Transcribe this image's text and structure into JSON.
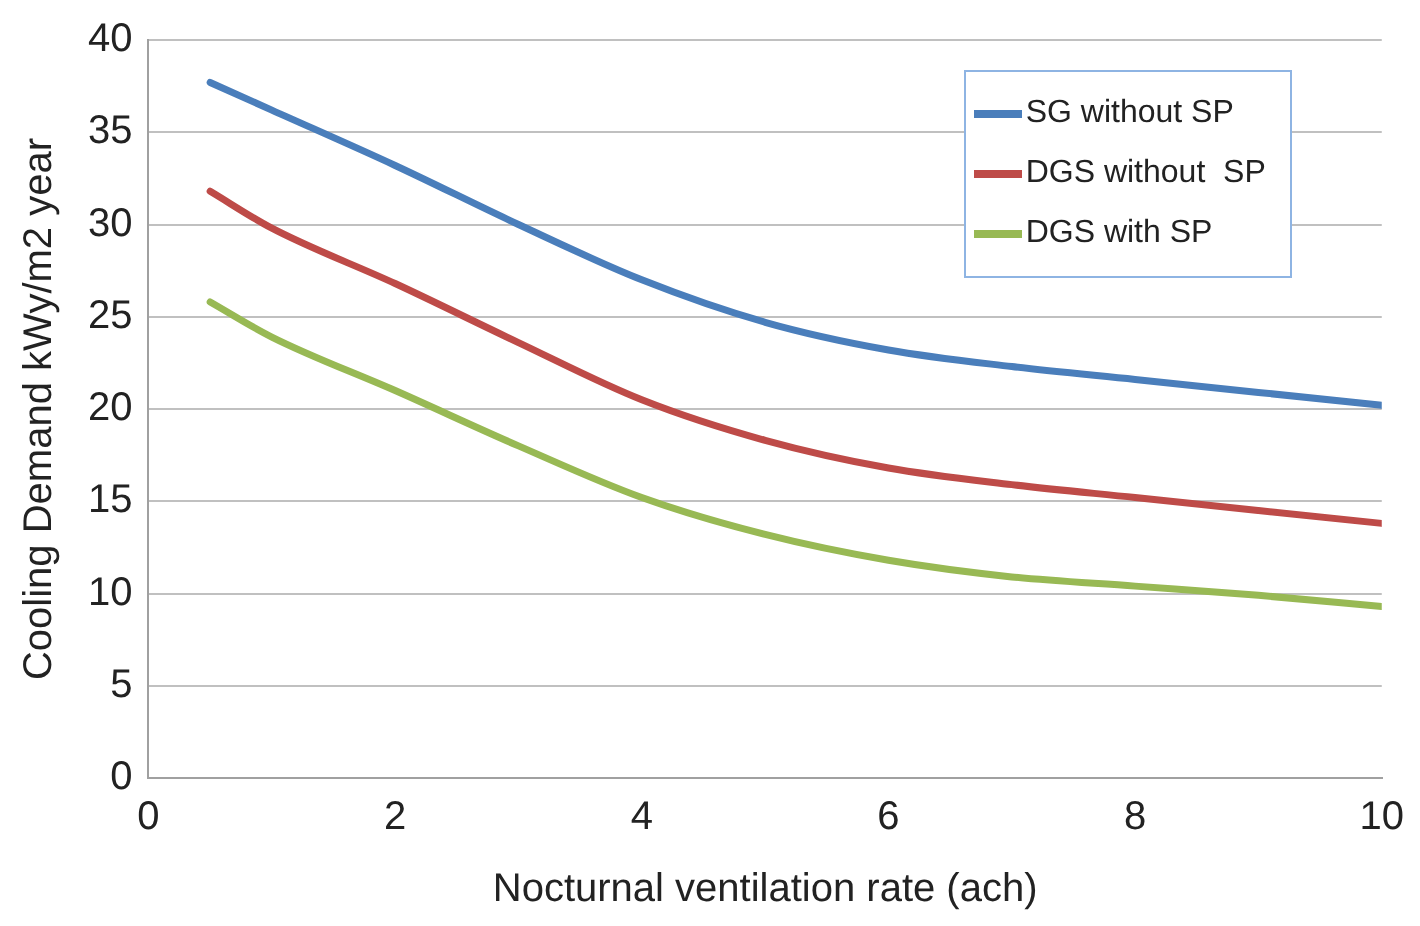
{
  "chart_data": {
    "type": "line",
    "xlabel": "Nocturnal ventilation rate (ach)",
    "ylabel": "Cooling Demand kWy/m2 year",
    "x": [
      0.5,
      1,
      2,
      3,
      4,
      5,
      6,
      7,
      8,
      9,
      10
    ],
    "series": [
      {
        "name": "SG without SP",
        "color": "#4a7ebb",
        "values": [
          37.7,
          36.2,
          33.2,
          30.0,
          27.0,
          24.7,
          23.2,
          22.3,
          21.6,
          20.9,
          20.2
        ]
      },
      {
        "name": "DGS without  SP",
        "color": "#be4b48",
        "values": [
          31.8,
          29.8,
          26.8,
          23.6,
          20.5,
          18.3,
          16.8,
          15.9,
          15.2,
          14.5,
          13.8
        ]
      },
      {
        "name": "DGS with SP",
        "color": "#98b954",
        "values": [
          25.8,
          23.9,
          21.0,
          18.0,
          15.2,
          13.2,
          11.8,
          10.9,
          10.4,
          9.9,
          9.3
        ]
      }
    ],
    "xlim": [
      0,
      10
    ],
    "xticks": [
      0,
      2,
      4,
      6,
      8,
      10
    ],
    "ylim": [
      0,
      40
    ],
    "yticks": [
      0,
      5,
      10,
      15,
      20,
      25,
      30,
      35,
      40
    ],
    "grid": "y",
    "legend": "top right",
    "marker": "none",
    "line_style": "solid"
  }
}
